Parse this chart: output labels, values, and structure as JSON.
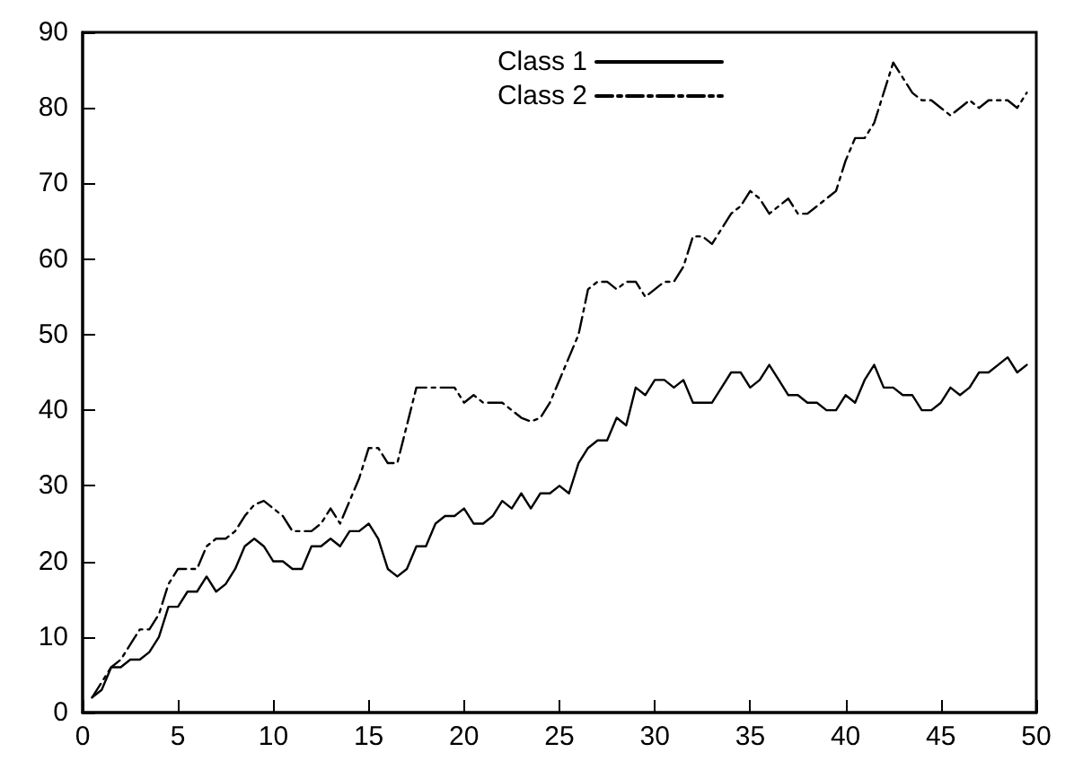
{
  "chart_data": {
    "type": "line",
    "x": [
      0.5,
      1,
      1.5,
      2,
      2.5,
      3,
      3.5,
      4,
      4.5,
      5,
      5.5,
      6,
      6.5,
      7,
      7.5,
      8,
      8.5,
      9,
      9.5,
      10,
      10.5,
      11,
      11.5,
      12,
      12.5,
      13,
      13.5,
      14,
      14.5,
      15,
      15.5,
      16,
      16.5,
      17,
      17.5,
      18,
      18.5,
      19,
      19.5,
      20,
      20.5,
      21,
      21.5,
      22,
      22.5,
      23,
      23.5,
      24,
      24.5,
      25,
      25.5,
      26,
      26.5,
      27,
      27.5,
      28,
      28.5,
      29,
      29.5,
      30,
      30.5,
      31,
      31.5,
      32,
      32.5,
      33,
      33.5,
      34,
      34.5,
      35,
      35.5,
      36,
      36.5,
      37,
      37.5,
      38,
      38.5,
      39,
      39.5,
      40,
      40.5,
      41,
      41.5,
      42,
      42.5,
      43,
      43.5,
      44,
      44.5,
      45,
      45.5,
      46,
      46.5,
      47,
      47.5,
      48,
      48.5,
      49,
      49.5
    ],
    "series": [
      {
        "name": "Class 1",
        "color": "#000000",
        "line_style": "solid",
        "values": [
          2,
          3,
          6,
          6,
          7,
          7,
          8,
          10,
          14,
          14,
          16,
          16,
          18,
          16,
          17,
          19,
          22,
          23,
          22,
          20,
          20,
          19,
          19,
          22,
          22,
          23,
          22,
          24,
          24,
          25,
          23,
          19,
          18,
          19,
          22,
          22,
          25,
          26,
          26,
          27,
          25,
          25,
          26,
          28,
          27,
          29,
          27,
          29,
          29,
          30,
          29,
          33,
          35,
          36,
          36,
          39,
          38,
          43,
          42,
          44,
          44,
          43,
          44,
          41,
          41,
          41,
          43,
          45,
          45,
          43,
          44,
          46,
          44,
          42,
          42,
          41,
          41,
          40,
          40,
          42,
          41,
          44,
          46,
          43,
          43,
          42,
          42,
          40,
          40,
          41,
          43,
          42,
          43,
          45,
          45,
          46,
          47,
          45,
          46
        ]
      },
      {
        "name": "Class 2",
        "color": "#000000",
        "line_style": "dashed",
        "values": [
          2,
          4,
          6,
          7,
          9,
          11,
          11,
          13,
          17,
          19,
          19,
          19,
          22,
          23,
          23,
          24,
          26,
          27.5,
          28,
          27,
          26,
          24,
          24,
          24,
          25,
          27,
          25,
          28,
          31,
          35,
          35,
          33,
          33,
          38,
          43,
          43,
          43,
          43,
          43,
          41,
          42,
          41,
          41,
          41,
          40,
          39,
          38.5,
          39,
          41,
          44,
          47,
          50,
          56,
          57,
          57,
          56,
          57,
          57,
          55,
          56,
          57,
          57,
          59,
          63,
          63,
          62,
          64,
          66,
          67,
          69,
          68,
          66,
          67,
          68,
          66,
          66,
          67,
          68,
          69,
          73,
          76,
          76,
          78,
          82,
          86,
          84,
          82,
          81,
          81,
          80,
          79,
          80,
          81,
          80,
          81,
          81,
          81,
          80,
          82
        ]
      }
    ],
    "xlim": [
      0,
      50
    ],
    "xticks": [
      0,
      5,
      10,
      15,
      20,
      25,
      30,
      35,
      40,
      45,
      50
    ],
    "ylim": [
      0,
      90
    ],
    "yticks": [
      0,
      10,
      20,
      30,
      40,
      50,
      60,
      70,
      80,
      90
    ],
    "grid": false,
    "legend": "top right",
    "marker": "none"
  }
}
